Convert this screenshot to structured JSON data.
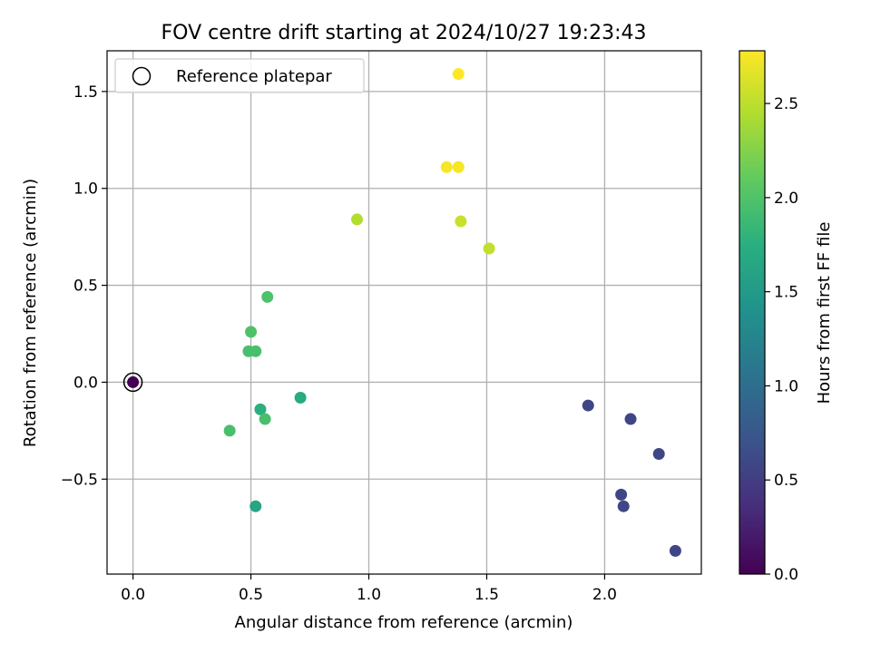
{
  "chart_data": {
    "type": "scatter",
    "title": "FOV centre drift starting at 2024/10/27 19:23:43",
    "xlabel": "Angular distance from reference (arcmin)",
    "ylabel": "Rotation from reference (arcmin)",
    "xlim": [
      -0.11,
      2.41
    ],
    "ylim": [
      -0.99,
      1.71
    ],
    "xticks": [
      0.0,
      0.5,
      1.0,
      1.5,
      2.0
    ],
    "xtick_labels": [
      "0.0",
      "0.5",
      "1.0",
      "1.5",
      "2.0"
    ],
    "yticks": [
      -0.5,
      0.0,
      0.5,
      1.0,
      1.5
    ],
    "ytick_labels": [
      "−0.5",
      "0.0",
      "0.5",
      "1.0",
      "1.5"
    ],
    "grid": true,
    "colormap": "viridis",
    "colorbar": {
      "label": "Hours from first FF file",
      "range": [
        0.0,
        2.78
      ],
      "ticks": [
        0.0,
        0.5,
        1.0,
        1.5,
        2.0,
        2.5
      ],
      "tick_labels": [
        "0.0",
        "0.5",
        "1.0",
        "1.5",
        "2.0",
        "2.5"
      ]
    },
    "legend": {
      "placement": "top-left",
      "entries": [
        {
          "label": "Reference platepar",
          "marker": "open-circle"
        }
      ]
    },
    "reference_point": {
      "x": 0.0,
      "y": 0.0
    },
    "points": [
      {
        "x": 0.0,
        "y": 0.0,
        "hours": 0.0
      },
      {
        "x": 1.93,
        "y": -0.12,
        "hours": 0.58
      },
      {
        "x": 2.11,
        "y": -0.19,
        "hours": 0.58
      },
      {
        "x": 2.23,
        "y": -0.37,
        "hours": 0.58
      },
      {
        "x": 2.07,
        "y": -0.58,
        "hours": 0.58
      },
      {
        "x": 2.08,
        "y": -0.64,
        "hours": 0.58
      },
      {
        "x": 2.3,
        "y": -0.87,
        "hours": 0.58
      },
      {
        "x": 0.52,
        "y": -0.64,
        "hours": 1.62
      },
      {
        "x": 0.71,
        "y": -0.08,
        "hours": 1.7
      },
      {
        "x": 0.54,
        "y": -0.14,
        "hours": 1.75
      },
      {
        "x": 0.41,
        "y": -0.25,
        "hours": 1.95
      },
      {
        "x": 0.56,
        "y": -0.19,
        "hours": 1.95
      },
      {
        "x": 0.49,
        "y": 0.16,
        "hours": 1.95
      },
      {
        "x": 0.52,
        "y": 0.16,
        "hours": 1.95
      },
      {
        "x": 0.5,
        "y": 0.26,
        "hours": 1.98
      },
      {
        "x": 0.57,
        "y": 0.44,
        "hours": 1.98
      },
      {
        "x": 0.95,
        "y": 0.84,
        "hours": 2.45
      },
      {
        "x": 1.51,
        "y": 0.69,
        "hours": 2.53
      },
      {
        "x": 1.39,
        "y": 0.83,
        "hours": 2.55
      },
      {
        "x": 1.33,
        "y": 1.11,
        "hours": 2.75
      },
      {
        "x": 1.38,
        "y": 1.11,
        "hours": 2.75
      },
      {
        "x": 1.38,
        "y": 1.59,
        "hours": 2.78
      }
    ]
  }
}
